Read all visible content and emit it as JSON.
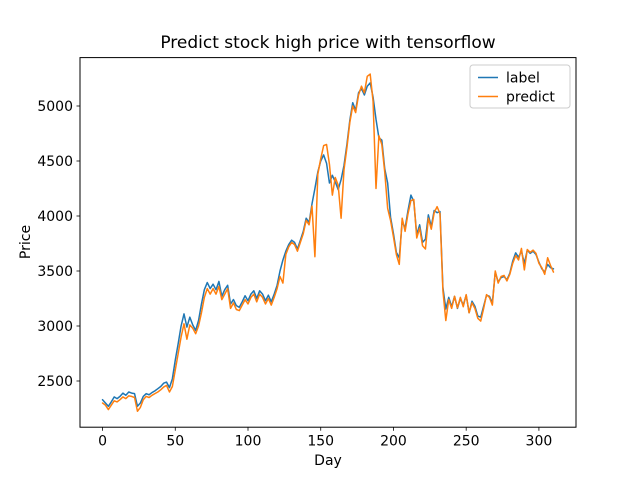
{
  "figure": {
    "title": "Predict stock high price with tensorflow"
  },
  "chart_data": {
    "type": "line",
    "title": "Predict stock high price with tensorflow",
    "xlabel": "Day",
    "ylabel": "Price",
    "grid": false,
    "legend_position": "upper right",
    "xlim": [
      -15.5,
      325.5
    ],
    "ylim": [
      2080,
      5440
    ],
    "xticks": [
      0,
      50,
      100,
      150,
      200,
      250,
      300
    ],
    "yticks": [
      2500,
      3000,
      3500,
      4000,
      4500,
      5000
    ],
    "x": [
      0,
      2,
      4,
      6,
      8,
      10,
      12,
      14,
      16,
      18,
      20,
      22,
      24,
      26,
      28,
      30,
      32,
      34,
      36,
      38,
      40,
      42,
      44,
      46,
      48,
      50,
      52,
      54,
      56,
      58,
      60,
      62,
      64,
      66,
      68,
      70,
      72,
      74,
      76,
      78,
      80,
      82,
      84,
      86,
      88,
      90,
      92,
      94,
      96,
      98,
      100,
      102,
      104,
      106,
      108,
      110,
      112,
      114,
      116,
      118,
      120,
      122,
      124,
      126,
      128,
      130,
      132,
      134,
      136,
      138,
      140,
      142,
      144,
      146,
      148,
      150,
      152,
      154,
      156,
      158,
      160,
      162,
      164,
      166,
      168,
      170,
      172,
      174,
      176,
      178,
      180,
      182,
      184,
      186,
      188,
      190,
      192,
      194,
      196,
      198,
      200,
      202,
      204,
      206,
      208,
      210,
      212,
      214,
      216,
      218,
      220,
      222,
      224,
      226,
      228,
      230,
      232,
      234,
      236,
      238,
      240,
      242,
      244,
      246,
      248,
      250,
      252,
      254,
      256,
      258,
      260,
      262,
      264,
      266,
      268,
      270,
      272,
      274,
      276,
      278,
      280,
      282,
      284,
      286,
      288,
      290,
      292,
      294,
      296,
      298,
      300,
      302,
      304,
      306,
      308,
      310
    ],
    "series": [
      {
        "name": "label",
        "color": "#1f77b4",
        "values": [
          2330,
          2300,
          2270,
          2310,
          2355,
          2340,
          2360,
          2390,
          2370,
          2400,
          2390,
          2385,
          2270,
          2300,
          2360,
          2385,
          2375,
          2395,
          2410,
          2430,
          2450,
          2480,
          2490,
          2440,
          2520,
          2690,
          2840,
          3000,
          3110,
          2990,
          3080,
          3010,
          2960,
          3050,
          3200,
          3330,
          3395,
          3340,
          3380,
          3330,
          3405,
          3270,
          3330,
          3370,
          3200,
          3240,
          3185,
          3170,
          3220,
          3275,
          3230,
          3290,
          3320,
          3250,
          3320,
          3290,
          3230,
          3280,
          3220,
          3290,
          3370,
          3500,
          3600,
          3680,
          3740,
          3780,
          3760,
          3700,
          3780,
          3860,
          3980,
          3940,
          4110,
          4250,
          4400,
          4500,
          4555,
          4480,
          4300,
          4370,
          4310,
          4240,
          4330,
          4460,
          4650,
          4870,
          5030,
          4960,
          5120,
          5160,
          5100,
          5180,
          5210,
          5080,
          4880,
          4710,
          4690,
          4430,
          4300,
          3990,
          3840,
          3670,
          3620,
          3950,
          3890,
          4050,
          4190,
          4130,
          3830,
          3920,
          3760,
          3790,
          4010,
          3905,
          4050,
          4030,
          4040,
          3350,
          3155,
          3260,
          3175,
          3270,
          3160,
          3250,
          3190,
          3280,
          3120,
          3225,
          3180,
          3090,
          3080,
          3180,
          3280,
          3270,
          3210,
          3490,
          3400,
          3440,
          3450,
          3420,
          3480,
          3590,
          3665,
          3625,
          3680,
          3570,
          3690,
          3660,
          3680,
          3650,
          3580,
          3520,
          3490,
          3560,
          3530,
          3520
        ]
      },
      {
        "name": "predict",
        "color": "#ff7f0e",
        "values": [
          2300,
          2280,
          2240,
          2280,
          2320,
          2310,
          2330,
          2355,
          2340,
          2365,
          2360,
          2350,
          2225,
          2260,
          2330,
          2360,
          2350,
          2370,
          2385,
          2400,
          2420,
          2445,
          2460,
          2400,
          2450,
          2600,
          2750,
          2900,
          3020,
          2880,
          3010,
          2980,
          2930,
          3000,
          3120,
          3260,
          3340,
          3290,
          3340,
          3290,
          3360,
          3240,
          3290,
          3340,
          3160,
          3210,
          3150,
          3140,
          3190,
          3240,
          3200,
          3260,
          3290,
          3220,
          3290,
          3260,
          3200,
          3250,
          3190,
          3260,
          3340,
          3450,
          3390,
          3650,
          3720,
          3760,
          3740,
          3680,
          3760,
          3840,
          3960,
          3920,
          4090,
          3630,
          4380,
          4520,
          4640,
          4650,
          4470,
          4190,
          4350,
          4280,
          3980,
          4420,
          4620,
          4850,
          5000,
          4940,
          5100,
          5180,
          5120,
          5270,
          5290,
          5040,
          4250,
          4730,
          4650,
          4400,
          4070,
          3960,
          3810,
          3650,
          3560,
          3980,
          3860,
          4020,
          4140,
          4150,
          3800,
          3890,
          3730,
          3700,
          3980,
          3880,
          4030,
          4085,
          4020,
          3320,
          3050,
          3240,
          3160,
          3270,
          3165,
          3260,
          3175,
          3285,
          3120,
          3210,
          3160,
          3070,
          3045,
          3160,
          3285,
          3260,
          3190,
          3500,
          3390,
          3450,
          3460,
          3410,
          3470,
          3570,
          3640,
          3600,
          3705,
          3510,
          3695,
          3670,
          3690,
          3660,
          3570,
          3530,
          3470,
          3620,
          3550,
          3490
        ]
      }
    ]
  },
  "legend": {
    "items": [
      {
        "label": "label",
        "color": "#1f77b4"
      },
      {
        "label": "predict",
        "color": "#ff7f0e"
      }
    ]
  }
}
